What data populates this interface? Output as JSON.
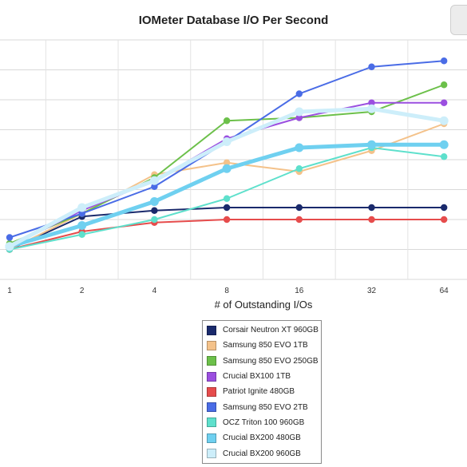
{
  "chart_data": {
    "type": "line",
    "title": "IOMeter Database I/O Per Second",
    "xlabel": "# of Outstanding I/Os",
    "ylabel": "",
    "categories": [
      "1",
      "2",
      "4",
      "8",
      "16",
      "32",
      "64"
    ],
    "grid": true,
    "legend_placement": "bottom-center",
    "series": [
      {
        "name": "Corsair Neutron XT 960GB",
        "color": "#1a2a6c",
        "values": [
          1.0,
          2.1,
          2.3,
          2.4,
          2.4,
          2.4,
          2.4
        ]
      },
      {
        "name": "Samsung 850 EVO 1TB",
        "color": "#f4c28a",
        "values": [
          1.0,
          2.2,
          3.5,
          3.9,
          3.6,
          4.3,
          5.2
        ]
      },
      {
        "name": "Samsung 850 EVO 250GB",
        "color": "#6cc04a",
        "values": [
          1.2,
          2.2,
          3.4,
          5.3,
          5.4,
          5.6,
          6.5
        ]
      },
      {
        "name": "Crucial BX100 1TB",
        "color": "#9b4fe0",
        "values": [
          1.1,
          2.3,
          3.3,
          4.7,
          5.4,
          5.9,
          5.9
        ]
      },
      {
        "name": "Patriot Ignite 480GB",
        "color": "#e64c4c",
        "values": [
          1.0,
          1.6,
          1.9,
          2.0,
          2.0,
          2.0,
          2.0
        ]
      },
      {
        "name": "Samsung 850 EVO 2TB",
        "color": "#4a6ce6",
        "values": [
          1.4,
          2.2,
          3.1,
          4.6,
          6.2,
          7.1,
          7.3
        ]
      },
      {
        "name": "OCZ Triton 100 960GB",
        "color": "#5ee0cc",
        "values": [
          1.0,
          1.5,
          2.0,
          2.7,
          3.7,
          4.4,
          4.1
        ]
      },
      {
        "name": "Crucial BX200 480GB",
        "color": "#6fd0f0",
        "values": [
          1.1,
          1.8,
          2.6,
          3.7,
          4.4,
          4.5,
          4.5
        ]
      },
      {
        "name": "Crucial BX200 960GB",
        "color": "#cdeefa",
        "values": [
          1.1,
          2.4,
          3.3,
          4.6,
          5.6,
          5.7,
          5.3
        ]
      }
    ],
    "ylim": [
      0,
      8
    ]
  }
}
